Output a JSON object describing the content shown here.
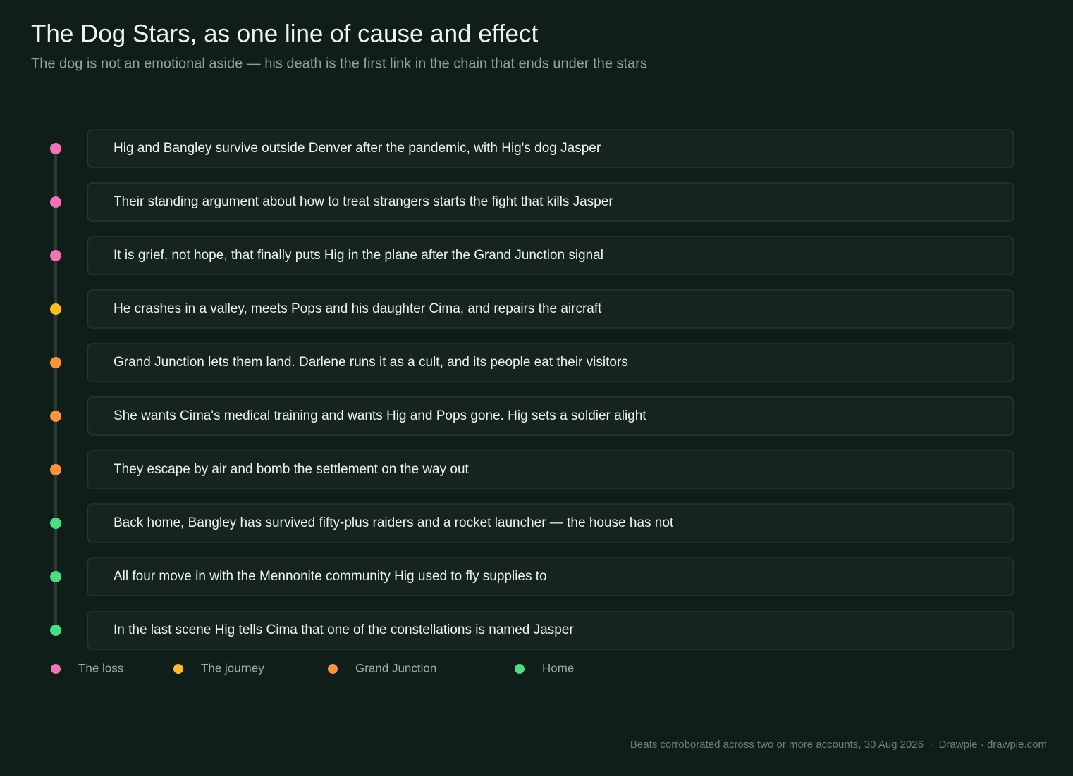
{
  "header": {
    "title": "The Dog Stars, as one line of cause and effect",
    "subtitle": "The dog is not an emotional aside — his death is the first link in the chain that ends under the stars"
  },
  "steps": [
    {
      "text": "Hig and Bangley survive outside Denver after the pandemic, with Hig's dog Jasper",
      "color": "#f472b6"
    },
    {
      "text": "Their standing argument about how to treat strangers starts the fight that kills Jasper",
      "color": "#f472b6"
    },
    {
      "text": "It is grief, not hope, that finally puts Hig in the plane after the Grand Junction signal",
      "color": "#f472b6"
    },
    {
      "text": "He crashes in a valley, meets Pops and his daughter Cima, and repairs the aircraft",
      "color": "#fbbf24"
    },
    {
      "text": "Grand Junction lets them land. Darlene runs it as a cult, and its people eat their visitors",
      "color": "#fb923c"
    },
    {
      "text": "She wants Cima's medical training and wants Hig and Pops gone. Hig sets a soldier alight",
      "color": "#fb923c"
    },
    {
      "text": "They escape by air and bomb the settlement on the way out",
      "color": "#fb923c"
    },
    {
      "text": "Back home, Bangley has survived fifty-plus raiders and a rocket launcher — the house has not",
      "color": "#4ade80"
    },
    {
      "text": "All four move in with the Mennonite community Hig used to fly supplies to",
      "color": "#4ade80"
    },
    {
      "text": "In the last scene Hig tells Cima that one of the constellations is named Jasper",
      "color": "#4ade80"
    }
  ],
  "legend": [
    {
      "name": "The loss",
      "color": "#f472b6"
    },
    {
      "name": "The journey",
      "color": "#fbbf24"
    },
    {
      "name": "Grand Junction",
      "color": "#fb923c"
    },
    {
      "name": "Home",
      "color": "#4ade80"
    }
  ],
  "footer": "Beats corroborated across two or more accounts, 30 Aug 2026  ·  Drawpie · drawpie.com"
}
